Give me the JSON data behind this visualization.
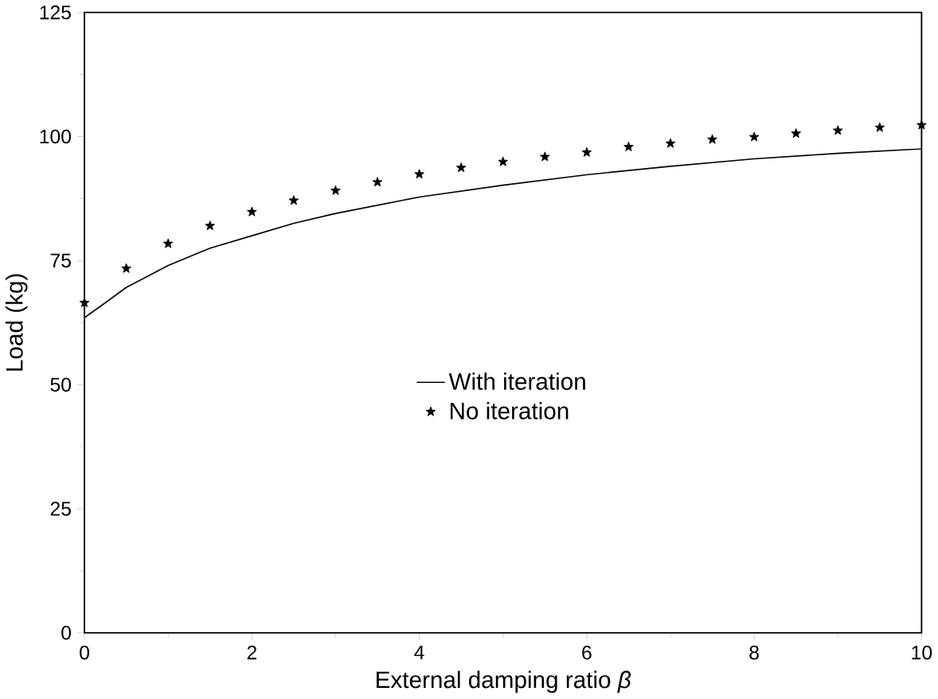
{
  "chart_data": {
    "type": "line",
    "xlabel": "External damping ratio *β*",
    "ylabel": "Load (kg)",
    "xlim": [
      0,
      10
    ],
    "ylim": [
      0,
      125
    ],
    "xticks": [
      0,
      2,
      4,
      6,
      8,
      10
    ],
    "yticks": [
      0,
      25,
      50,
      75,
      100,
      125
    ],
    "legend": "center",
    "grid": false,
    "series": [
      {
        "name": "With iteration",
        "color": "#000000",
        "marker": "none",
        "line_style": "solid",
        "x": [
          0,
          0.25,
          0.5,
          1,
          1.5,
          2,
          2.5,
          3,
          4,
          5,
          6,
          7,
          8,
          9,
          10
        ],
        "values": [
          63.5,
          66.5,
          69.6,
          74,
          77.5,
          80,
          82.5,
          84.5,
          87.8,
          90.2,
          92.3,
          94,
          95.5,
          96.6,
          97.5
        ]
      },
      {
        "name": "No iteration",
        "type": "scatter",
        "color": "#000000",
        "marker": "star",
        "x": [
          0,
          0.5,
          1,
          1.5,
          2,
          2.5,
          3,
          3.5,
          4,
          4.5,
          5,
          5.5,
          6,
          6.5,
          7,
          7.5,
          8,
          8.5,
          9,
          9.5,
          10
        ],
        "values": [
          66.5,
          73.4,
          78.4,
          82.0,
          84.8,
          87.1,
          89.1,
          90.8,
          92.4,
          93.7,
          94.9,
          95.9,
          96.8,
          97.9,
          98.6,
          99.4,
          99.9,
          100.6,
          101.2,
          101.8,
          102.3
        ]
      }
    ]
  }
}
